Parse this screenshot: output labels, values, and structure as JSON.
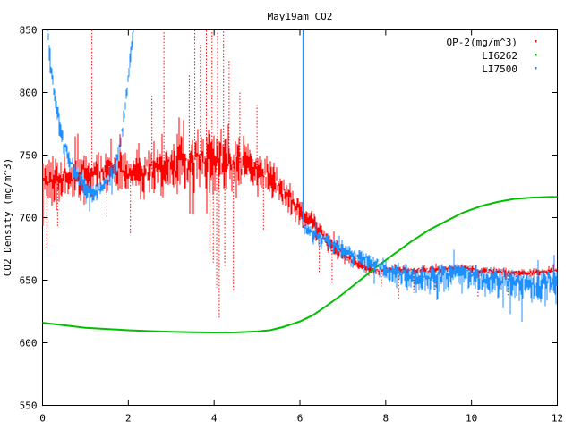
{
  "window": {
    "background": "#ffffff",
    "foreground": "#000000"
  },
  "chart_data": {
    "type": "line",
    "title": "May19am CO2",
    "xlabel": "",
    "ylabel": "CO2 Density (mg/m^3)",
    "xlim": [
      0,
      12
    ],
    "ylim": [
      550,
      850
    ],
    "xticks": [
      0,
      2,
      4,
      6,
      8,
      10,
      12
    ],
    "yticks": [
      550,
      600,
      650,
      700,
      750,
      800,
      850
    ],
    "grid": false,
    "tick_style": "inward-mirrored",
    "legend": {
      "position": "top-right-inside",
      "marker": "dot"
    },
    "series": [
      {
        "name": "OP-2(mg/m^3)",
        "color": "#ff0000",
        "style": "noisy-dots",
        "mean": [
          [
            0,
            733
          ],
          [
            0.4,
            729
          ],
          [
            0.8,
            734
          ],
          [
            1.2,
            737
          ],
          [
            1.6,
            740
          ],
          [
            2,
            736
          ],
          [
            2.4,
            737
          ],
          [
            2.8,
            742
          ],
          [
            3.2,
            743
          ],
          [
            3.6,
            747
          ],
          [
            4,
            750
          ],
          [
            4.4,
            746
          ],
          [
            4.8,
            742
          ],
          [
            5.1,
            738
          ],
          [
            5.4,
            730
          ],
          [
            5.7,
            718
          ],
          [
            6,
            707
          ],
          [
            6.3,
            696
          ],
          [
            6.6,
            684
          ],
          [
            6.9,
            674
          ],
          [
            7.2,
            666
          ],
          [
            7.5,
            661
          ],
          [
            7.8,
            658
          ],
          [
            8.2,
            659
          ],
          [
            8.6,
            658
          ],
          [
            9,
            658
          ],
          [
            9.4,
            659
          ],
          [
            9.8,
            660
          ],
          [
            10.2,
            658
          ],
          [
            10.6,
            657
          ],
          [
            11,
            656
          ],
          [
            11.4,
            656
          ],
          [
            11.8,
            657
          ],
          [
            12,
            657
          ]
        ],
        "noise": [
          [
            0,
            15
          ],
          [
            1,
            13
          ],
          [
            2,
            13
          ],
          [
            2.6,
            15
          ],
          [
            3.2,
            17
          ],
          [
            3.6,
            19
          ],
          [
            4,
            20
          ],
          [
            4.4,
            17
          ],
          [
            4.8,
            13
          ],
          [
            5.2,
            12
          ],
          [
            5.6,
            10
          ],
          [
            6,
            9
          ],
          [
            6.4,
            7
          ],
          [
            6.8,
            6
          ],
          [
            7.2,
            4
          ],
          [
            7.6,
            3
          ],
          [
            8,
            2.5
          ],
          [
            12,
            2.5
          ]
        ],
        "spikes_up": [
          [
            1.15,
            872
          ],
          [
            2.55,
            798
          ],
          [
            2.83,
            872
          ],
          [
            3.42,
            815
          ],
          [
            3.55,
            850
          ],
          [
            3.68,
            838
          ],
          [
            3.82,
            855
          ],
          [
            3.95,
            862
          ],
          [
            4.08,
            848
          ],
          [
            4.22,
            852
          ],
          [
            4.35,
            826
          ],
          [
            4.6,
            800
          ],
          [
            5.0,
            790
          ]
        ],
        "spikes_down": [
          [
            0.1,
            676
          ],
          [
            0.35,
            692
          ],
          [
            1.5,
            700
          ],
          [
            2.05,
            686
          ],
          [
            3.9,
            672
          ],
          [
            3.98,
            664
          ],
          [
            4.06,
            644
          ],
          [
            4.12,
            620
          ],
          [
            4.25,
            660
          ],
          [
            4.45,
            642
          ],
          [
            5.15,
            690
          ],
          [
            6.45,
            655
          ],
          [
            6.75,
            648
          ],
          [
            7.9,
            645
          ],
          [
            8.3,
            634
          ],
          [
            8.65,
            640
          ],
          [
            9.15,
            642
          ],
          [
            10.15,
            636
          ],
          [
            10.85,
            638
          ],
          [
            11.45,
            640
          ]
        ]
      },
      {
        "name": "LI6262",
        "color": "#00c000",
        "style": "smooth-line",
        "mean": [
          [
            0,
            616
          ],
          [
            0.5,
            614
          ],
          [
            1,
            612
          ],
          [
            1.5,
            611
          ],
          [
            2,
            610
          ],
          [
            2.5,
            609.3
          ],
          [
            3,
            608.8
          ],
          [
            3.5,
            608.4
          ],
          [
            4,
            608.2
          ],
          [
            4.5,
            608.3
          ],
          [
            5,
            609
          ],
          [
            5.3,
            610
          ],
          [
            5.6,
            612.5
          ],
          [
            6,
            617
          ],
          [
            6.3,
            622
          ],
          [
            6.6,
            629
          ],
          [
            7,
            639
          ],
          [
            7.4,
            650
          ],
          [
            7.8,
            661
          ],
          [
            8.2,
            671
          ],
          [
            8.6,
            681
          ],
          [
            9,
            690
          ],
          [
            9.4,
            697
          ],
          [
            9.8,
            704
          ],
          [
            10.2,
            709
          ],
          [
            10.6,
            712.5
          ],
          [
            11,
            715
          ],
          [
            11.4,
            716
          ],
          [
            11.8,
            716.5
          ],
          [
            12,
            716.5
          ]
        ]
      },
      {
        "name": "LI7500",
        "color": "#1e8fff",
        "style": "noisy-dots",
        "segments": [
          {
            "mean": [
              [
                0.08,
                862
              ],
              [
                0.2,
                820
              ],
              [
                0.35,
                782
              ],
              [
                0.5,
                758
              ],
              [
                0.65,
                745
              ],
              [
                0.8,
                734
              ],
              [
                0.95,
                726
              ],
              [
                1.1,
                720
              ],
              [
                1.25,
                721
              ],
              [
                1.4,
                726
              ],
              [
                1.55,
                731
              ],
              [
                1.7,
                742
              ],
              [
                1.82,
                760
              ],
              [
                1.92,
                786
              ],
              [
                2.02,
                818
              ],
              [
                2.12,
                852
              ],
              [
                2.2,
                875
              ]
            ],
            "noise": [
              [
                0.08,
                7
              ],
              [
                2.2,
                7
              ]
            ]
          },
          {
            "mean": [
              [
                6.08,
                694
              ],
              [
                6.3,
                689
              ],
              [
                6.55,
                684
              ],
              [
                6.8,
                679
              ],
              [
                7.05,
                674
              ],
              [
                7.3,
                669
              ],
              [
                7.6,
                665
              ],
              [
                7.9,
                662
              ],
              [
                8.2,
                658
              ],
              [
                8.5,
                655
              ],
              [
                8.8,
                653
              ],
              [
                9.1,
                654
              ],
              [
                9.4,
                656
              ],
              [
                9.7,
                658
              ],
              [
                10,
                655
              ],
              [
                10.3,
                652
              ],
              [
                10.6,
                651
              ],
              [
                10.9,
                650
              ],
              [
                11.2,
                649
              ],
              [
                11.5,
                648
              ],
              [
                11.8,
                649
              ],
              [
                12,
                650
              ]
            ],
            "noise": [
              [
                6.08,
                4
              ],
              [
                6.5,
                5
              ],
              [
                7,
                5
              ],
              [
                7.5,
                6
              ],
              [
                8,
                7
              ],
              [
                9,
                8
              ],
              [
                10,
                8
              ],
              [
                11,
                9
              ],
              [
                12,
                9
              ]
            ]
          }
        ],
        "drop_line": {
          "x": 6.08,
          "from": 900,
          "to": 697
        }
      }
    ]
  }
}
